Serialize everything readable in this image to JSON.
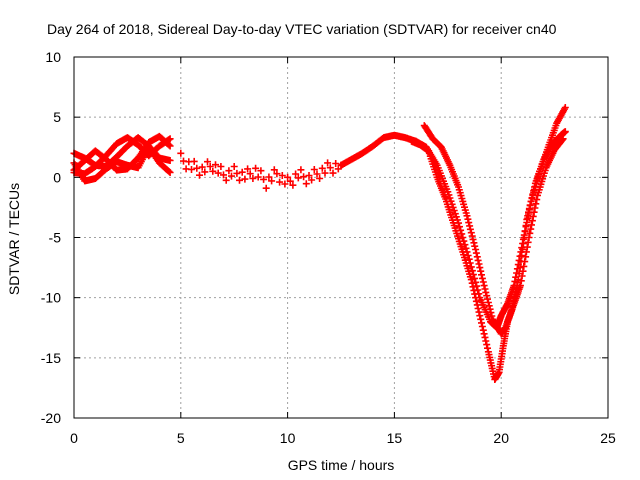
{
  "chart_data": {
    "type": "scatter",
    "title": "Day 264 of 2018, Sidereal Day-to-day VTEC variation (SDTVAR) for receiver cn40",
    "xlabel": "GPS time / hours",
    "ylabel": "SDTVAR / TECUs",
    "xlim": [
      0,
      25
    ],
    "ylim": [
      -20,
      10
    ],
    "xticks": [
      0,
      5,
      10,
      15,
      20,
      25
    ],
    "yticks": [
      -20,
      -15,
      -10,
      -5,
      0,
      5,
      10
    ],
    "grid": true,
    "marker": "+",
    "color": "#ff0000",
    "series": [
      {
        "name": "trace-a",
        "x": [
          0.0,
          0.5,
          1.0,
          1.5,
          2.0,
          2.5,
          3.0,
          3.5,
          4.0,
          4.5
        ],
        "y": [
          2.0,
          1.6,
          1.0,
          0.9,
          1.7,
          2.6,
          3.3,
          2.6,
          1.6,
          1.4
        ]
      },
      {
        "name": "trace-b",
        "x": [
          0.0,
          0.5,
          1.0,
          1.5,
          2.0,
          2.5,
          3.0,
          3.5,
          4.0,
          4.5
        ],
        "y": [
          0.4,
          0.3,
          0.9,
          1.8,
          2.8,
          3.3,
          2.7,
          1.8,
          2.6,
          3.2
        ]
      },
      {
        "name": "trace-c",
        "x": [
          0.0,
          0.5,
          1.0,
          1.5,
          2.0,
          2.5,
          3.0,
          3.5,
          4.0,
          4.5
        ],
        "y": [
          1.2,
          -0.3,
          -0.1,
          0.7,
          1.3,
          1.0,
          0.8,
          2.5,
          1.2,
          0.4
        ]
      },
      {
        "name": "trace-d",
        "x": [
          0.0,
          0.5,
          1.0,
          1.5,
          2.0,
          2.5,
          3.0,
          3.5,
          4.0,
          4.5
        ],
        "y": [
          0.6,
          1.4,
          2.2,
          1.5,
          0.6,
          0.7,
          1.6,
          2.9,
          3.4,
          2.6
        ]
      },
      {
        "name": "sparse",
        "x": [
          5.0,
          5.5,
          6.0,
          6.5,
          7.0,
          7.5,
          8.0,
          8.5,
          9.0,
          9.5,
          10.0,
          10.5,
          11.0,
          11.5,
          12.0,
          12.5
        ],
        "y": [
          1.5,
          0.9,
          0.6,
          1.0,
          0.2,
          0.4,
          0.1,
          0.5,
          -0.4,
          0.3,
          -0.5,
          0.2,
          -0.1,
          0.4,
          0.8,
          1.0
        ]
      },
      {
        "name": "rise",
        "x": [
          12.5,
          13.0,
          13.5,
          14.0,
          14.5,
          15.0,
          15.5,
          16.0
        ],
        "y": [
          1.0,
          1.5,
          2.0,
          2.6,
          3.3,
          3.5,
          3.3,
          3.0
        ]
      },
      {
        "name": "drop-1",
        "x": [
          16.0,
          16.5,
          17.0,
          17.5,
          18.0,
          18.5,
          19.0,
          19.5,
          19.8,
          20.0,
          20.3,
          20.6,
          21.0,
          21.4,
          21.8,
          22.2,
          22.6,
          23.0
        ],
        "y": [
          3.0,
          2.5,
          1.0,
          -1.2,
          -3.8,
          -6.8,
          -10.0,
          -12.0,
          -12.5,
          -11.5,
          -10.5,
          -9.0,
          -5.5,
          -2.0,
          0.5,
          2.5,
          4.5,
          5.8
        ]
      },
      {
        "name": "drop-2",
        "x": [
          16.4,
          16.8,
          17.2,
          17.6,
          18.0,
          18.4,
          18.8,
          19.2,
          19.6,
          20.0,
          20.2,
          20.5,
          20.8,
          21.2,
          21.6,
          22.0,
          22.4,
          22.8,
          23.0
        ],
        "y": [
          4.3,
          3.2,
          2.5,
          1.0,
          -0.8,
          -3.2,
          -6.0,
          -9.0,
          -11.8,
          -13.0,
          -12.5,
          -11.0,
          -8.5,
          -3.5,
          -0.5,
          1.5,
          2.8,
          3.5,
          3.8
        ]
      },
      {
        "name": "drop-3",
        "x": [
          15.8,
          16.2,
          16.6,
          17.0,
          17.4,
          17.8,
          18.2,
          18.6,
          19.0,
          19.4,
          19.7,
          19.9,
          20.1,
          20.3,
          20.6,
          20.9,
          21.3,
          21.7,
          22.1,
          22.5,
          22.9
        ],
        "y": [
          3.0,
          2.7,
          2.2,
          0.0,
          -1.8,
          -4.0,
          -6.2,
          -8.5,
          -11.5,
          -14.5,
          -16.8,
          -16.2,
          -14.0,
          -12.0,
          -10.5,
          -9.0,
          -5.0,
          -1.5,
          0.8,
          2.3,
          3.2
        ]
      }
    ]
  }
}
